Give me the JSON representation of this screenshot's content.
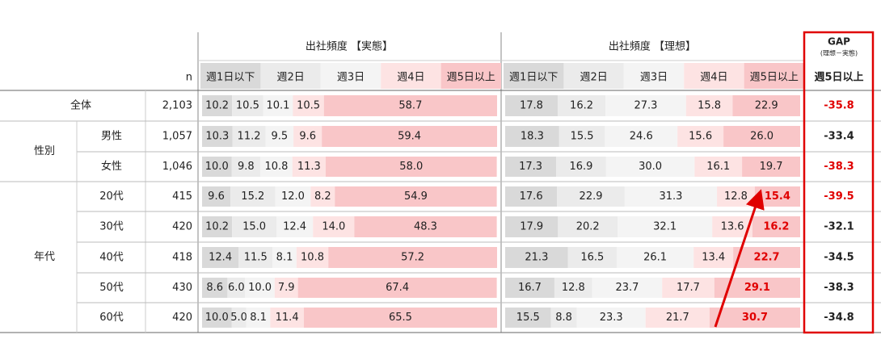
{
  "header": {
    "actual_title": "出社頻度 【実態】",
    "ideal_title": "出社頻度 【理想】",
    "n_label": "n",
    "categories": [
      "週1日以下",
      "週2日",
      "週3日",
      "週4日",
      "週5日以上"
    ],
    "gap_title": "GAP",
    "gap_subtitle": "(理想－実態)",
    "gap_category": "週5日以上"
  },
  "segment_colors": [
    "#d9d9d9",
    "#ebebeb",
    "#f4f4f4",
    "#fde3e3",
    "#f9c6c8"
  ],
  "groups": [
    {
      "label": "性別",
      "first": 1,
      "last": 2
    },
    {
      "label": "年代",
      "first": 3,
      "last": 7
    }
  ],
  "rows": [
    {
      "label": "全体",
      "n": "2,103",
      "actual": [
        "10.2",
        "10.5",
        "10.1",
        "10.5",
        "58.7"
      ],
      "ideal": [
        "17.8",
        "16.2",
        "27.3",
        "15.8",
        "22.9"
      ],
      "gap": "-35.8",
      "gap_red": true,
      "ideal_last_red": false
    },
    {
      "label": "男性",
      "n": "1,057",
      "actual": [
        "10.3",
        "11.2",
        "9.5",
        "9.6",
        "59.4"
      ],
      "ideal": [
        "18.3",
        "15.5",
        "24.6",
        "15.6",
        "26.0"
      ],
      "gap": "-33.4",
      "gap_red": false,
      "ideal_last_red": false
    },
    {
      "label": "女性",
      "n": "1,046",
      "actual": [
        "10.0",
        "9.8",
        "10.8",
        "11.3",
        "58.0"
      ],
      "ideal": [
        "17.3",
        "16.9",
        "30.0",
        "16.1",
        "19.7"
      ],
      "gap": "-38.3",
      "gap_red": true,
      "ideal_last_red": false
    },
    {
      "label": "20代",
      "n": "415",
      "actual": [
        "9.6",
        "15.2",
        "12.0",
        "8.2",
        "54.9"
      ],
      "ideal": [
        "17.6",
        "22.9",
        "31.3",
        "12.8",
        "15.4"
      ],
      "gap": "-39.5",
      "gap_red": true,
      "ideal_last_red": true
    },
    {
      "label": "30代",
      "n": "420",
      "actual": [
        "10.2",
        "15.0",
        "12.4",
        "14.0",
        "48.3"
      ],
      "ideal": [
        "17.9",
        "20.2",
        "32.1",
        "13.6",
        "16.2"
      ],
      "gap": "-32.1",
      "gap_red": false,
      "ideal_last_red": true
    },
    {
      "label": "40代",
      "n": "418",
      "actual": [
        "12.4",
        "11.5",
        "8.1",
        "10.8",
        "57.2"
      ],
      "ideal": [
        "21.3",
        "16.5",
        "26.1",
        "13.4",
        "22.7"
      ],
      "gap": "-34.5",
      "gap_red": false,
      "ideal_last_red": true
    },
    {
      "label": "50代",
      "n": "430",
      "actual": [
        "8.6",
        "6.0",
        "10.0",
        "7.9",
        "67.4"
      ],
      "ideal": [
        "16.7",
        "12.8",
        "23.7",
        "17.7",
        "29.1"
      ],
      "gap": "-38.3",
      "gap_red": false,
      "ideal_last_red": true
    },
    {
      "label": "60代",
      "n": "420",
      "actual": [
        "10.0",
        "5.0",
        "8.1",
        "11.4",
        "65.5"
      ],
      "ideal": [
        "15.5",
        "8.8",
        "23.3",
        "21.7",
        "30.7"
      ],
      "gap": "-34.8",
      "gap_red": false,
      "ideal_last_red": true
    }
  ]
}
